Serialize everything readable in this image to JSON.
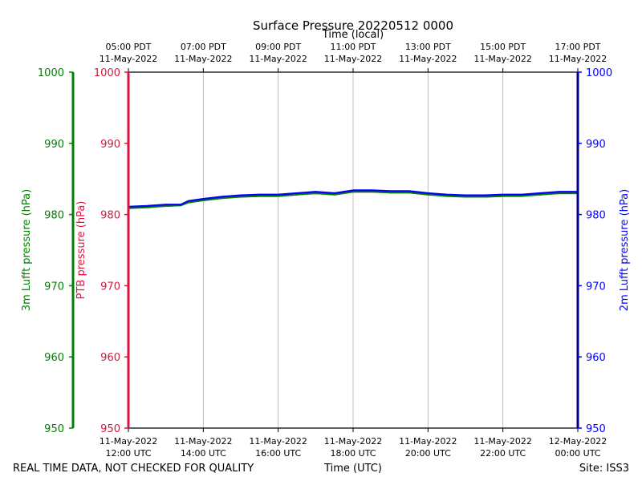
{
  "chart_data": {
    "type": "line",
    "title": "Surface Pressure 20220512 0000",
    "x_label_bottom": "Time (UTC)",
    "x_label_top": "Time (local)",
    "x_range_hours_utc": [
      12,
      24
    ],
    "bottom_ticks": [
      {
        "hour": 12,
        "line1": "11-May-2022",
        "line2": "12:00 UTC"
      },
      {
        "hour": 14,
        "line1": "11-May-2022",
        "line2": "14:00 UTC"
      },
      {
        "hour": 16,
        "line1": "11-May-2022",
        "line2": "16:00 UTC"
      },
      {
        "hour": 18,
        "line1": "11-May-2022",
        "line2": "18:00 UTC"
      },
      {
        "hour": 20,
        "line1": "11-May-2022",
        "line2": "20:00 UTC"
      },
      {
        "hour": 22,
        "line1": "11-May-2022",
        "line2": "22:00 UTC"
      },
      {
        "hour": 24,
        "line1": "12-May-2022",
        "line2": "00:00 UTC"
      }
    ],
    "top_ticks": [
      {
        "hour": 12,
        "line1": "05:00 PDT",
        "line2": "11-May-2022"
      },
      {
        "hour": 14,
        "line1": "07:00 PDT",
        "line2": "11-May-2022"
      },
      {
        "hour": 16,
        "line1": "09:00 PDT",
        "line2": "11-May-2022"
      },
      {
        "hour": 18,
        "line1": "11:00 PDT",
        "line2": "11-May-2022"
      },
      {
        "hour": 20,
        "line1": "13:00 PDT",
        "line2": "11-May-2022"
      },
      {
        "hour": 22,
        "line1": "15:00 PDT",
        "line2": "11-May-2022"
      },
      {
        "hour": 24,
        "line1": "17:00 PDT",
        "line2": "11-May-2022"
      }
    ],
    "ylim": [
      950,
      1000
    ],
    "y_ticks": [
      950,
      960,
      970,
      980,
      990,
      1000
    ],
    "axes": [
      {
        "name": "3m-lufft-axis",
        "label": "3m Lufft pressure (hPa)",
        "color": "#008000",
        "side": "outer-left"
      },
      {
        "name": "ptb-axis",
        "label": "PTB pressure (hPa)",
        "color": "#dc143c",
        "side": "left"
      },
      {
        "name": "2m-lufft-axis",
        "label": "2m Lufft pressure (hPa)",
        "color": "#0000ff",
        "side": "right"
      }
    ],
    "grid": "vertical",
    "series": [
      {
        "name": "PTB pressure",
        "color": "#dc143c",
        "x": [
          12.0,
          12.5,
          13.0,
          13.4,
          13.6,
          14.0,
          14.5,
          15.0,
          15.5,
          16.0,
          16.5,
          17.0,
          17.5,
          18.0,
          18.5,
          19.0,
          19.5,
          20.0,
          20.5,
          21.0,
          21.5,
          22.0,
          22.5,
          23.0,
          23.5,
          24.0
        ],
        "values": [
          980.9,
          981.1,
          981.2,
          981.3,
          981.7,
          982.0,
          982.4,
          982.5,
          982.6,
          982.6,
          982.8,
          983.0,
          982.8,
          983.2,
          983.2,
          983.1,
          983.1,
          982.8,
          982.7,
          982.6,
          982.5,
          982.6,
          982.7,
          982.8,
          983.0,
          983.0
        ]
      },
      {
        "name": "3m Lufft pressure",
        "color": "#008000",
        "x": [
          12.0,
          12.5,
          13.0,
          13.4,
          13.6,
          14.0,
          14.5,
          15.0,
          15.5,
          16.0,
          16.5,
          17.0,
          17.5,
          18.0,
          18.5,
          19.0,
          19.5,
          20.0,
          20.5,
          21.0,
          21.5,
          22.0,
          22.5,
          23.0,
          23.5,
          24.0
        ],
        "values": [
          980.9,
          981.0,
          981.2,
          981.3,
          981.7,
          982.0,
          982.3,
          982.5,
          982.6,
          982.6,
          982.8,
          983.0,
          982.8,
          983.2,
          983.2,
          983.1,
          983.1,
          982.8,
          982.6,
          982.5,
          982.5,
          982.6,
          982.6,
          982.8,
          983.0,
          983.0
        ]
      },
      {
        "name": "2m Lufft pressure",
        "color": "#0000ff",
        "x": [
          12.0,
          12.5,
          13.0,
          13.4,
          13.6,
          14.0,
          14.5,
          15.0,
          15.5,
          16.0,
          16.5,
          17.0,
          17.5,
          18.0,
          18.5,
          19.0,
          19.5,
          20.0,
          20.5,
          21.0,
          21.5,
          22.0,
          22.5,
          23.0,
          23.5,
          24.0
        ],
        "values": [
          981.1,
          981.2,
          981.4,
          981.4,
          981.9,
          982.2,
          982.5,
          982.7,
          982.8,
          982.8,
          983.0,
          983.2,
          983.0,
          983.4,
          983.4,
          983.3,
          983.3,
          983.0,
          982.8,
          982.7,
          982.7,
          982.8,
          982.8,
          983.0,
          983.2,
          983.2
        ]
      }
    ]
  },
  "footer": {
    "quality_note": "REAL TIME DATA, NOT CHECKED FOR QUALITY",
    "site": "Site: ISS3"
  }
}
